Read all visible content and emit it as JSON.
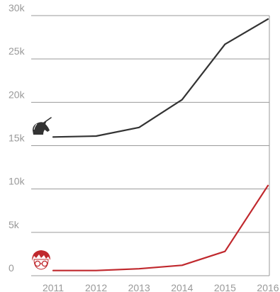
{
  "chart_data": {
    "type": "line",
    "x": [
      2011,
      2012,
      2013,
      2014,
      2015,
      2016
    ],
    "x_tick_labels": [
      "2011",
      "2012",
      "2013",
      "2014",
      "2015",
      "2016"
    ],
    "y_ticks": [
      0,
      5000,
      10000,
      15000,
      20000,
      25000,
      30000
    ],
    "y_tick_labels": [
      "0",
      "5k",
      "10k",
      "15k",
      "20k",
      "25k",
      "30k"
    ],
    "ylim": [
      0,
      30000
    ],
    "grid": true,
    "series": [
      {
        "values": [
          16000,
          16100,
          17100,
          20300,
          26700,
          29600
        ],
        "color": "#333333",
        "icon": "unicorn-icon"
      },
      {
        "values": [
          600,
          600,
          800,
          1200,
          2800,
          10400
        ],
        "color": "#c0282d",
        "icon": "harry-potter-face-icon"
      }
    ]
  }
}
